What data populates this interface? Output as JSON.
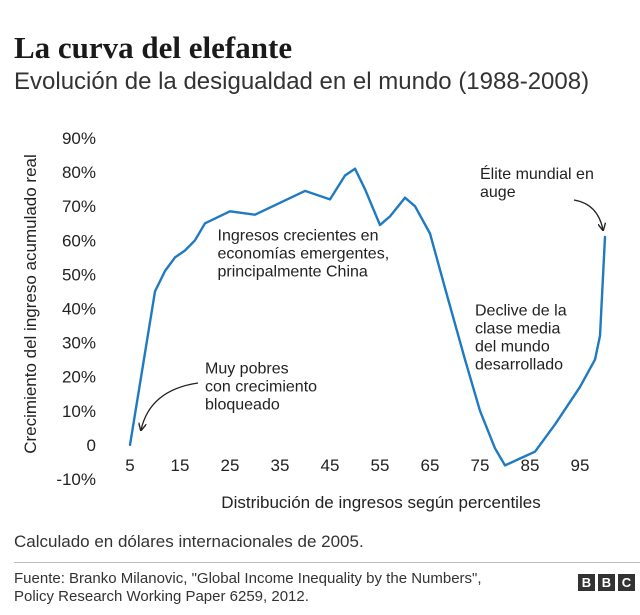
{
  "title": "La curva del elefante",
  "subtitle": "Evolución de la desigualdad en el mundo (1988-2008)",
  "note": "Calculado en dólares internacionales de 2005.",
  "source_lines": [
    "Fuente: Branko Milanovic, \"Global Income Inequality by the Numbers\",",
    "Policy Research Working Paper 6259, 2012."
  ],
  "logo": [
    "B",
    "B",
    "C"
  ],
  "colors": {
    "line": "#1f7ac2",
    "text": "#222222",
    "annotation": "#222222"
  },
  "chart_data": {
    "type": "line",
    "title": "La curva del elefante",
    "xlabel": "Distribución de ingresos según percentiles",
    "ylabel": "Crecimiento del ingreso acumulado real",
    "xlim": [
      5,
      100
    ],
    "ylim": [
      -10,
      90
    ],
    "grid": false,
    "x_ticks": [
      5,
      15,
      25,
      35,
      45,
      55,
      65,
      75,
      85,
      95
    ],
    "y_ticks": [
      -10,
      0,
      10,
      20,
      30,
      40,
      50,
      60,
      70,
      80,
      90
    ],
    "y_tick_labels": [
      "-10%",
      "0",
      "10%",
      "20%",
      "30%",
      "40%",
      "50%",
      "60%",
      "70%",
      "80%",
      "90%"
    ],
    "series": [
      {
        "name": "Crecimiento del ingreso acumulado real",
        "x": [
          5,
          10,
          12,
          14,
          16,
          18,
          20,
          25,
          30,
          35,
          40,
          45,
          48,
          50,
          52,
          55,
          57,
          60,
          62,
          65,
          68,
          72,
          75,
          78,
          80,
          83,
          86,
          90,
          95,
          98,
          99,
          100
        ],
        "y": [
          0,
          45,
          51,
          55,
          57,
          60,
          65,
          68.5,
          67.5,
          71,
          74.5,
          72,
          79,
          81,
          75,
          64.5,
          67,
          72.5,
          70,
          62,
          46,
          25,
          10,
          -1,
          -6,
          -4,
          -2,
          6,
          17,
          25,
          32,
          61
        ]
      }
    ],
    "annotations": [
      {
        "lines": [
          "Ingresos crecientes en",
          "economías emergentes,",
          "principalmente China"
        ],
        "x": 22.5,
        "y": 60
      },
      {
        "lines": [
          "Élite mundial en",
          "auge"
        ],
        "x": 75,
        "y": 78
      },
      {
        "lines": [
          "Declive de la",
          "clase media",
          "del mundo",
          "desarrollado"
        ],
        "x": 74,
        "y": 38
      },
      {
        "lines": [
          "Muy pobres",
          "con crecimiento",
          "bloqueado"
        ],
        "x": 20,
        "y": 21
      }
    ]
  }
}
